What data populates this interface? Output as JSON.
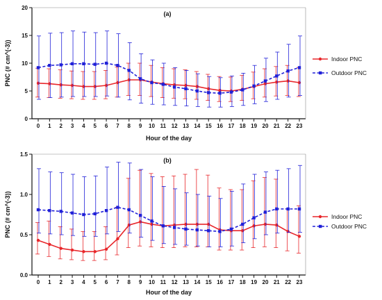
{
  "chart_data": [
    {
      "type": "line",
      "panel_label": "(a)",
      "xlabel": "Hour of the day",
      "ylabel": "PNC (# cm^(-3))",
      "ylim": [
        0,
        20
      ],
      "yticks": [
        0,
        5,
        10,
        15,
        20
      ],
      "x": [
        0,
        1,
        2,
        3,
        4,
        5,
        6,
        7,
        8,
        9,
        10,
        11,
        12,
        13,
        14,
        15,
        16,
        17,
        18,
        19,
        20,
        21,
        22,
        23
      ],
      "legend_position": "right",
      "series": [
        {
          "name": "Indoor PNC",
          "color": "#e8262a",
          "style": "solid",
          "marker": "circle",
          "values": [
            6.4,
            6.3,
            6.1,
            6.0,
            5.8,
            5.8,
            6.0,
            6.5,
            7.0,
            7.0,
            6.6,
            6.3,
            6.1,
            6.0,
            5.8,
            5.4,
            5.1,
            5.0,
            5.3,
            5.8,
            6.3,
            6.6,
            6.8,
            6.5
          ],
          "err_low": [
            3.9,
            3.8,
            3.7,
            3.6,
            3.5,
            3.5,
            3.6,
            3.9,
            4.2,
            4.2,
            4.0,
            3.8,
            3.7,
            3.6,
            3.5,
            3.3,
            3.1,
            3.1,
            3.3,
            3.6,
            3.9,
            4.1,
            4.2,
            4.0
          ],
          "err_high": [
            9.1,
            9.0,
            8.8,
            8.6,
            8.5,
            8.5,
            8.7,
            9.3,
            10.0,
            10.0,
            9.6,
            9.2,
            9.0,
            8.8,
            8.5,
            8.0,
            7.6,
            7.5,
            7.8,
            8.4,
            9.0,
            9.4,
            9.6,
            9.2
          ]
        },
        {
          "name": "Outdoor PNC",
          "color": "#2020d8",
          "style": "dashed",
          "marker": "square",
          "values": [
            9.2,
            9.6,
            9.7,
            9.9,
            9.9,
            9.8,
            10.0,
            9.6,
            8.7,
            7.2,
            6.5,
            6.2,
            5.7,
            5.4,
            5.0,
            4.7,
            4.6,
            4.8,
            5.2,
            5.9,
            6.8,
            7.7,
            8.6,
            9.2
          ],
          "err_low": [
            3.5,
            3.8,
            3.9,
            4.0,
            4.0,
            4.0,
            4.1,
            3.9,
            3.4,
            2.8,
            2.6,
            2.5,
            2.4,
            2.3,
            2.2,
            2.1,
            2.1,
            2.2,
            2.4,
            2.7,
            3.1,
            3.5,
            3.9,
            4.2
          ],
          "err_high": [
            14.9,
            15.4,
            15.5,
            15.8,
            15.6,
            15.5,
            15.8,
            15.3,
            13.7,
            11.7,
            10.6,
            10.0,
            9.2,
            8.7,
            8.1,
            7.6,
            7.4,
            7.7,
            8.2,
            9.6,
            10.9,
            12.0,
            13.4,
            14.9
          ]
        }
      ]
    },
    {
      "type": "line",
      "panel_label": "(b)",
      "xlabel": "Hour of the day",
      "ylabel": "PNC (# cm^(-3))",
      "ylim": [
        0,
        1.5
      ],
      "yticks": [
        "0.0",
        "0.5",
        "1.0",
        "1.5"
      ],
      "x": [
        0,
        1,
        2,
        3,
        4,
        5,
        6,
        7,
        8,
        9,
        10,
        11,
        12,
        13,
        14,
        15,
        16,
        17,
        18,
        19,
        20,
        21,
        22,
        23
      ],
      "legend_position": "right",
      "series": [
        {
          "name": "Indoor PNC",
          "color": "#e8262a",
          "style": "solid",
          "marker": "circle",
          "values": [
            0.43,
            0.38,
            0.33,
            0.31,
            0.29,
            0.29,
            0.32,
            0.45,
            0.62,
            0.66,
            0.63,
            0.61,
            0.62,
            0.63,
            0.63,
            0.63,
            0.56,
            0.55,
            0.55,
            0.61,
            0.63,
            0.62,
            0.54,
            0.48
          ],
          "err_low": [
            0.26,
            0.23,
            0.2,
            0.19,
            0.18,
            0.18,
            0.19,
            0.25,
            0.34,
            0.36,
            0.35,
            0.34,
            0.34,
            0.35,
            0.35,
            0.35,
            0.31,
            0.31,
            0.31,
            0.34,
            0.35,
            0.34,
            0.3,
            0.27
          ],
          "err_high": [
            0.65,
            0.67,
            0.6,
            0.57,
            0.54,
            0.54,
            0.6,
            0.84,
            1.2,
            1.3,
            1.26,
            1.22,
            1.23,
            1.25,
            1.31,
            1.24,
            1.08,
            1.06,
            1.06,
            1.17,
            1.21,
            1.19,
            0.82,
            0.86
          ]
        },
        {
          "name": "Outdoor PNC",
          "color": "#2020d8",
          "style": "dashed",
          "marker": "square",
          "values": [
            0.81,
            0.8,
            0.79,
            0.77,
            0.75,
            0.76,
            0.8,
            0.84,
            0.81,
            0.74,
            0.67,
            0.61,
            0.59,
            0.57,
            0.56,
            0.55,
            0.54,
            0.57,
            0.63,
            0.71,
            0.78,
            0.82,
            0.82,
            0.82
          ],
          "err_low": [
            0.52,
            0.51,
            0.5,
            0.49,
            0.48,
            0.48,
            0.51,
            0.54,
            0.52,
            0.47,
            0.43,
            0.39,
            0.38,
            0.37,
            0.36,
            0.35,
            0.35,
            0.36,
            0.4,
            0.45,
            0.5,
            0.52,
            0.53,
            0.53
          ],
          "err_high": [
            1.32,
            1.28,
            1.27,
            1.25,
            1.22,
            1.23,
            1.34,
            1.4,
            1.39,
            1.31,
            1.22,
            1.1,
            1.07,
            1.02,
            1.0,
            0.98,
            0.95,
            1.04,
            1.13,
            1.25,
            1.28,
            1.3,
            1.32,
            1.36
          ]
        }
      ]
    }
  ]
}
